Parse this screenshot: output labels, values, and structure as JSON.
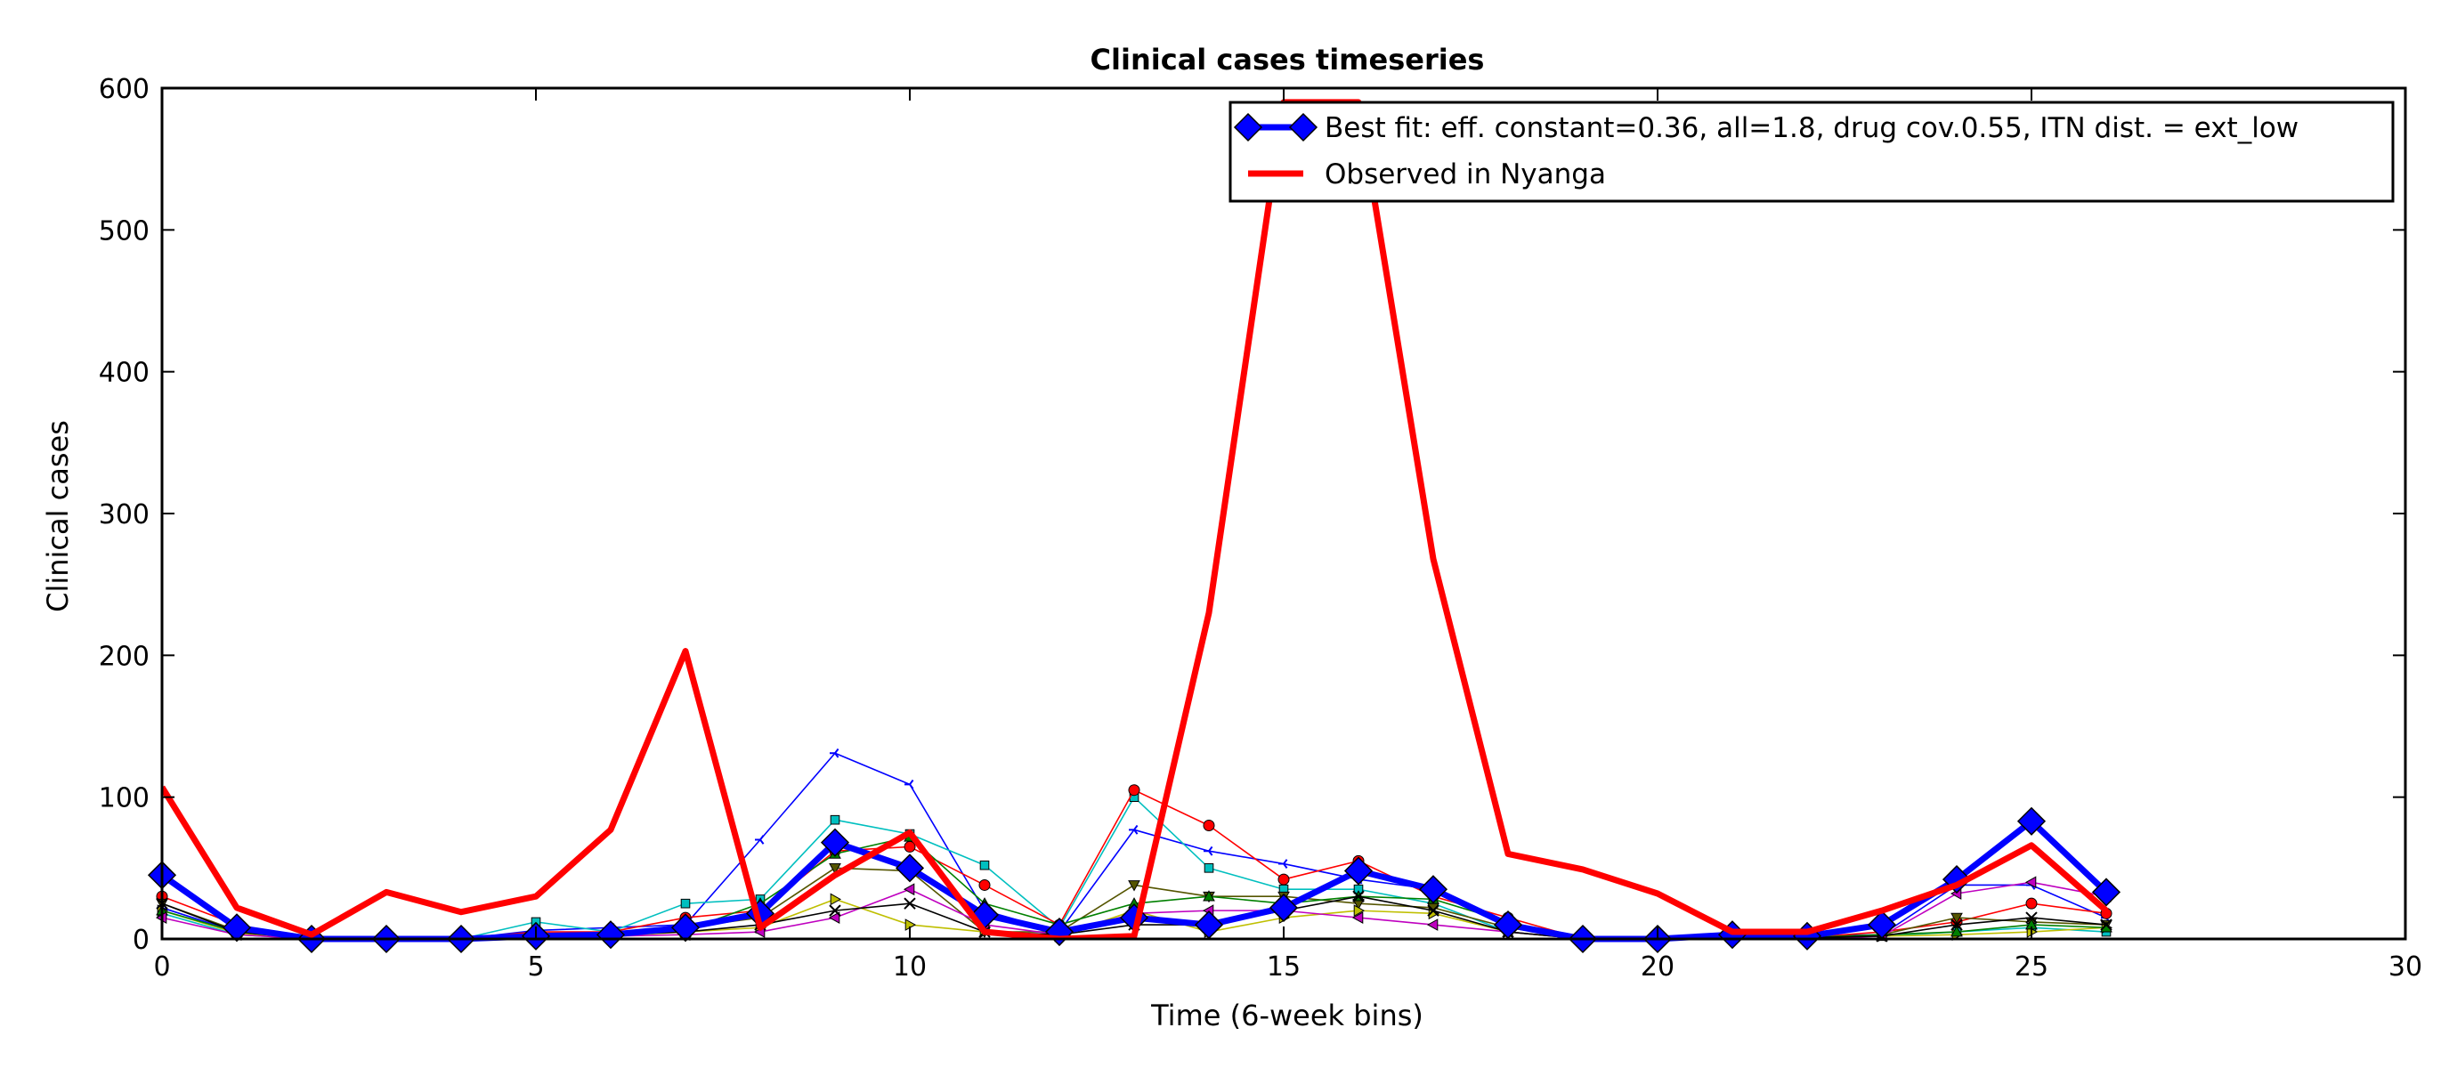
{
  "chart_data": {
    "type": "line",
    "title": "Clinical cases timeseries",
    "xlabel": "Time (6-week bins)",
    "ylabel": "Clinical cases",
    "xlim": [
      0,
      30
    ],
    "ylim": [
      0,
      600
    ],
    "x_ticks": [
      0,
      5,
      10,
      15,
      20,
      25,
      30
    ],
    "y_ticks": [
      0,
      100,
      200,
      300,
      400,
      500,
      600
    ],
    "grid": false,
    "legend_position": "top-right",
    "x": [
      0,
      1,
      2,
      3,
      4,
      5,
      6,
      7,
      8,
      9,
      10,
      11,
      12,
      13,
      14,
      15,
      16,
      17,
      18,
      19,
      20,
      21,
      22,
      23,
      24,
      25,
      26
    ],
    "series": [
      {
        "name": "Best fit: eff. constant=0.36, all=1.8, drug cov.0.55, ITN dist. = ext_low",
        "role": "best_fit",
        "color": "#0000ff",
        "marker": "diamond",
        "values": [
          45,
          8,
          0,
          0,
          0,
          2,
          3,
          8,
          18,
          68,
          50,
          17,
          5,
          15,
          10,
          22,
          48,
          35,
          10,
          0,
          0,
          3,
          2,
          10,
          42,
          83,
          33
        ]
      },
      {
        "name": "Observed in Nyanga",
        "role": "observed",
        "color": "#ff0000",
        "marker": "none",
        "values": [
          107,
          22,
          3,
          33,
          19,
          30,
          77,
          203,
          8,
          45,
          75,
          5,
          0,
          2,
          230,
          590,
          590,
          268,
          60,
          49,
          32,
          5,
          5,
          20,
          38,
          66,
          20
        ]
      },
      {
        "name": "",
        "color": "#0000ff",
        "marker": "tri_left",
        "values": [
          22,
          5,
          0,
          0,
          0,
          6,
          8,
          10,
          70,
          131,
          109,
          20,
          5,
          77,
          62,
          53,
          42,
          35,
          10,
          0,
          0,
          3,
          2,
          3,
          38,
          38,
          15
        ]
      },
      {
        "name": "",
        "color": "#00bfbf",
        "marker": "square",
        "values": [
          18,
          3,
          0,
          0,
          0,
          12,
          5,
          25,
          28,
          84,
          74,
          52,
          8,
          100,
          50,
          35,
          35,
          25,
          5,
          0,
          0,
          2,
          1,
          2,
          5,
          8,
          5
        ]
      },
      {
        "name": "",
        "color": "#ff0000",
        "marker": "circle",
        "values": [
          30,
          10,
          0,
          0,
          0,
          5,
          5,
          15,
          20,
          62,
          65,
          38,
          10,
          105,
          80,
          42,
          55,
          30,
          15,
          0,
          0,
          3,
          1,
          5,
          12,
          25,
          18
        ]
      },
      {
        "name": "",
        "color": "#555500",
        "marker": "triangle_down",
        "values": [
          25,
          6,
          0,
          0,
          0,
          3,
          3,
          8,
          15,
          50,
          48,
          5,
          5,
          38,
          30,
          30,
          25,
          22,
          8,
          0,
          0,
          2,
          1,
          3,
          15,
          12,
          10
        ]
      },
      {
        "name": "",
        "color": "#bfbf00",
        "marker": "triangle_right",
        "values": [
          20,
          4,
          0,
          0,
          0,
          2,
          2,
          5,
          8,
          28,
          10,
          5,
          2,
          20,
          5,
          15,
          20,
          18,
          5,
          0,
          0,
          1,
          1,
          2,
          3,
          5,
          8
        ]
      },
      {
        "name": "",
        "color": "#008000",
        "marker": "triangle_up",
        "values": [
          20,
          5,
          0,
          0,
          0,
          4,
          3,
          6,
          25,
          60,
          72,
          25,
          10,
          25,
          30,
          25,
          30,
          28,
          12,
          0,
          0,
          2,
          1,
          3,
          5,
          10,
          8
        ]
      },
      {
        "name": "",
        "color": "#bf00bf",
        "marker": "triangle_left",
        "values": [
          15,
          3,
          0,
          0,
          0,
          2,
          2,
          3,
          5,
          15,
          35,
          10,
          3,
          18,
          20,
          20,
          15,
          10,
          5,
          0,
          0,
          1,
          0,
          2,
          32,
          40,
          30
        ]
      },
      {
        "name": "",
        "color": "#000000",
        "marker": "x",
        "values": [
          25,
          5,
          0,
          0,
          0,
          3,
          3,
          5,
          10,
          20,
          25,
          5,
          3,
          10,
          10,
          20,
          30,
          20,
          5,
          0,
          0,
          2,
          1,
          2,
          10,
          15,
          10
        ]
      }
    ]
  }
}
